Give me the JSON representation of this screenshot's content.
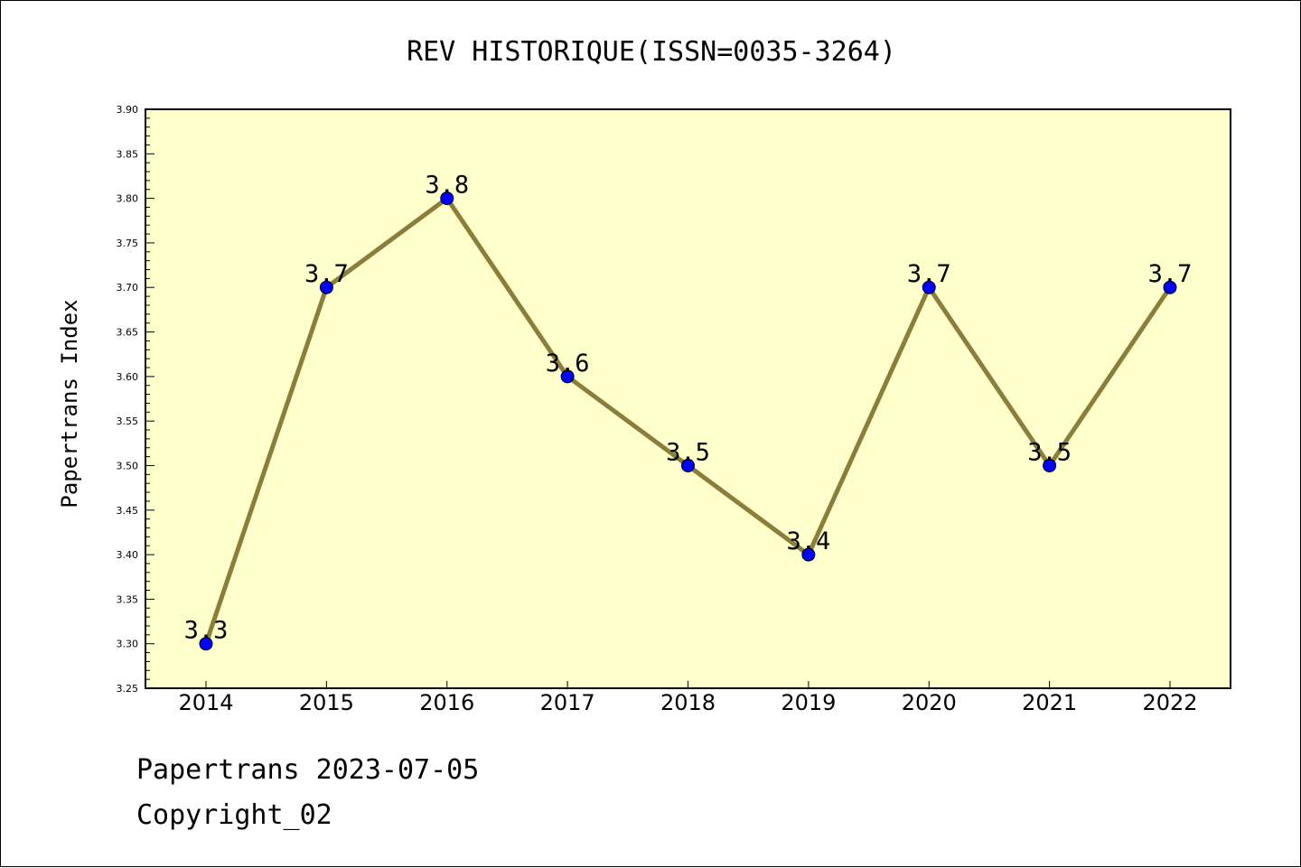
{
  "chart_data": {
    "type": "line",
    "title": "REV HISTORIQUE(ISSN=0035-3264)",
    "xlabel": "",
    "ylabel": "Papertrans Index",
    "categories": [
      "2014",
      "2015",
      "2016",
      "2017",
      "2018",
      "2019",
      "2020",
      "2021",
      "2022"
    ],
    "values": [
      3.3,
      3.7,
      3.8,
      3.6,
      3.5,
      3.4,
      3.7,
      3.5,
      3.7
    ],
    "data_labels": [
      "3.3",
      "3.7",
      "3.8",
      "3.6",
      "3.5",
      "3.4",
      "3.7",
      "3.5",
      "3.7"
    ],
    "ylim": [
      3.25,
      3.9
    ],
    "yticks": [
      "3.25",
      "3.30",
      "3.35",
      "3.40",
      "3.45",
      "3.50",
      "3.55",
      "3.60",
      "3.65",
      "3.70",
      "3.75",
      "3.80",
      "3.85",
      "3.90"
    ],
    "grid": false,
    "colors": {
      "plot_background": "#ffffcc",
      "line": "#8b7d3a",
      "marker": "#0000ff"
    }
  },
  "footer": {
    "line1": "Papertrans 2023-07-05",
    "line2": "Copyright_02"
  }
}
